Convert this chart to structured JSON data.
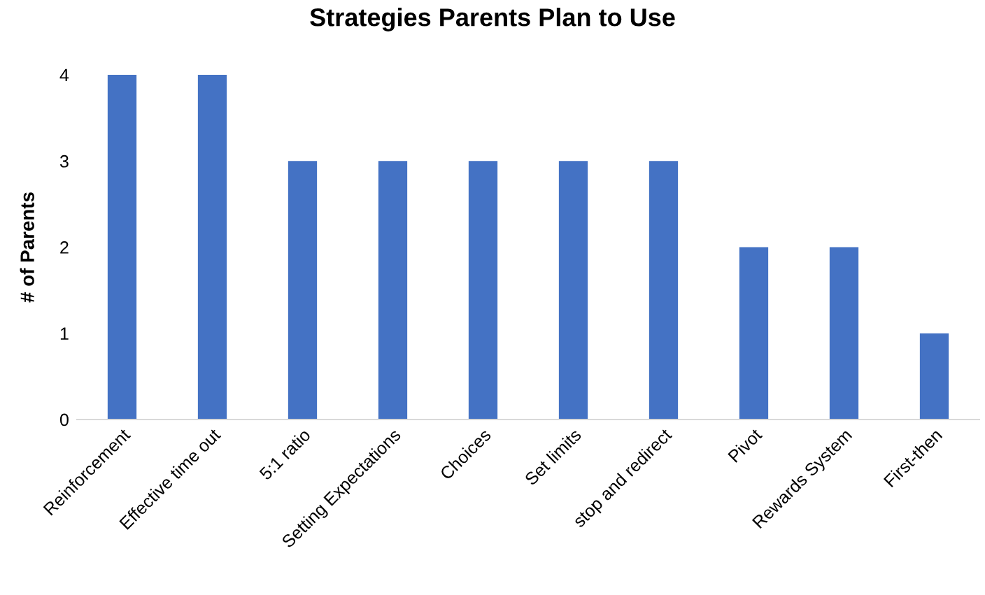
{
  "chart_data": {
    "type": "bar",
    "title": "Strategies Parents Plan to Use",
    "ylabel": "# of Parents",
    "categories": [
      "Reinforcement",
      "Effective time out",
      "5:1 ratio",
      "Setting Expectations",
      "Choices",
      "Set limits",
      "stop and redirect",
      "Pivot",
      "Rewards System",
      "First-then"
    ],
    "values": [
      4,
      4,
      3,
      3,
      3,
      3,
      3,
      2,
      2,
      1
    ],
    "color": "#4472c4",
    "ylim": [
      0,
      4
    ],
    "yticks": [
      0,
      1,
      2,
      3,
      4
    ],
    "grid": false,
    "legend": false
  }
}
